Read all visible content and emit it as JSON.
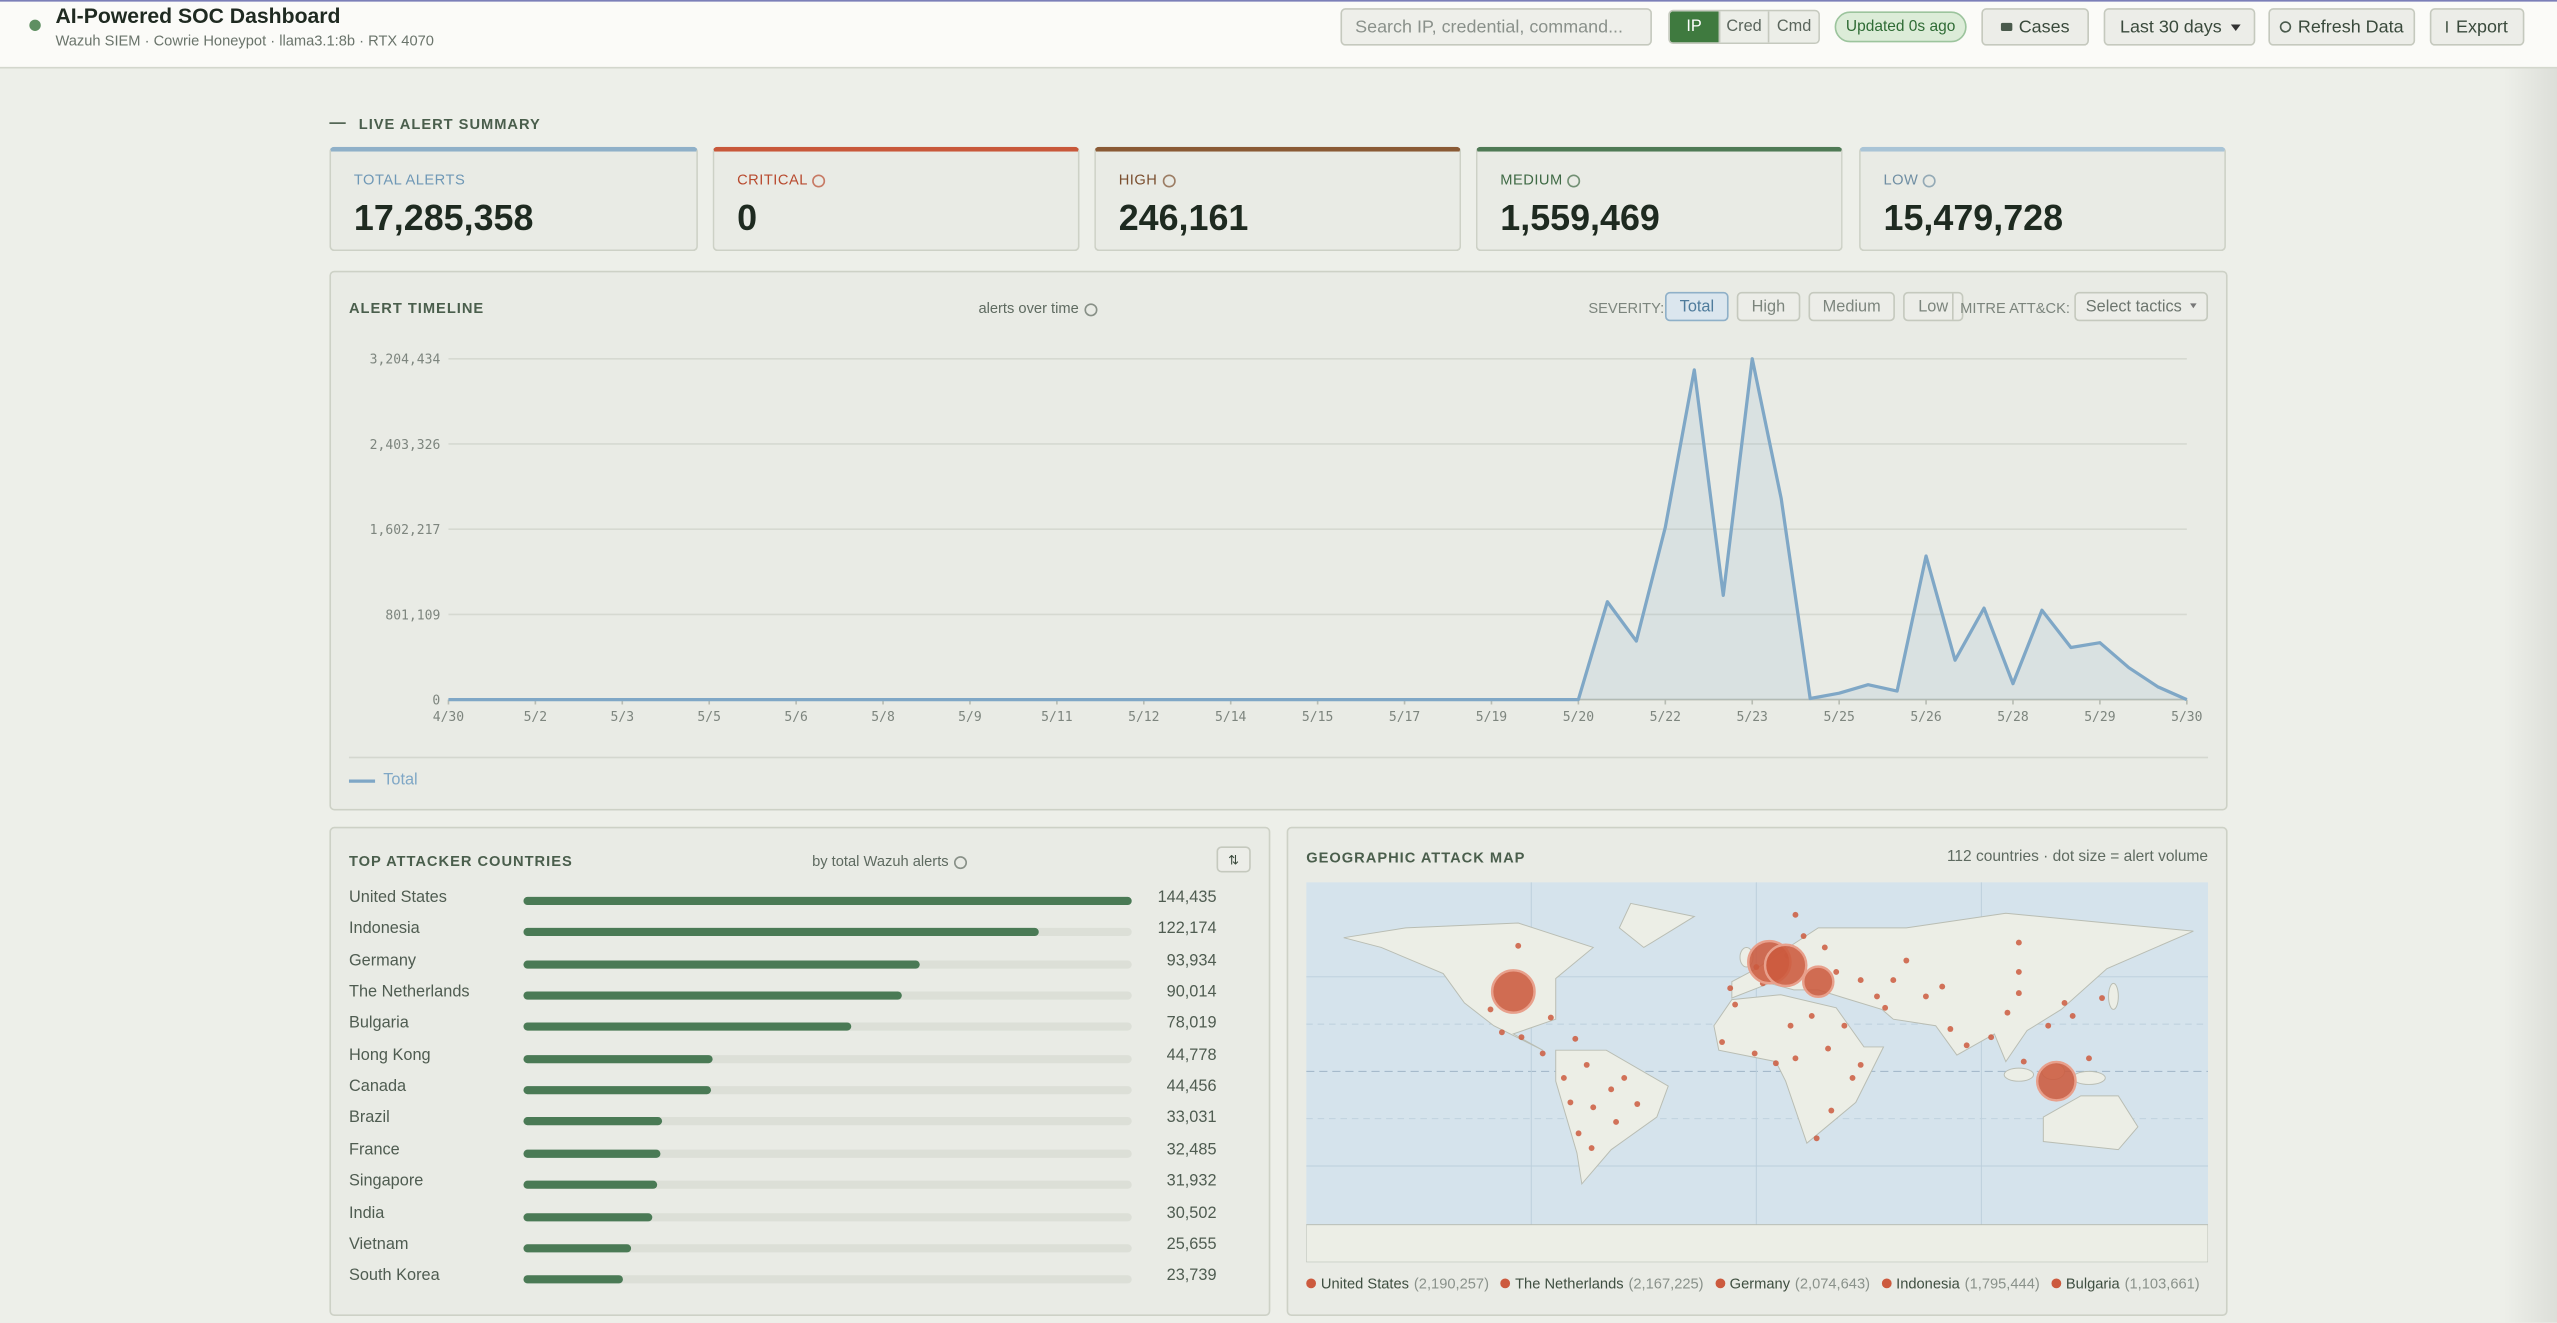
{
  "header": {
    "title": "AI-Powered SOC Dashboard",
    "subtitle": "Wazuh SIEM · Cowrie Honeypot · llama3.1:8b · RTX 4070",
    "search_placeholder": "Search IP, credential, command...",
    "search_modes": [
      "IP",
      "Cred",
      "Cmd"
    ],
    "status": "Updated 0s ago",
    "cases": "Cases",
    "range": "Last 30 days",
    "refresh": "Refresh Data",
    "export": "Export"
  },
  "summary": {
    "title": "LIVE ALERT SUMMARY",
    "cards": [
      {
        "label": "TOTAL ALERTS",
        "value": "17,285,358"
      },
      {
        "label": "CRITICAL",
        "value": "0"
      },
      {
        "label": "HIGH",
        "value": "246,161"
      },
      {
        "label": "MEDIUM",
        "value": "1,559,469"
      },
      {
        "label": "LOW",
        "value": "15,479,728"
      }
    ]
  },
  "timeline": {
    "title": "ALERT TIMELINE",
    "subtitle": "alerts over time",
    "severity_label": "SEVERITY:",
    "severity_options": [
      "Total",
      "High",
      "Medium",
      "Low"
    ],
    "mitre_label": "MITRE ATT&CK:",
    "mitre_placeholder": "Select tactics",
    "chart": {
      "type": "line",
      "categories": [
        "4/30",
        null,
        null,
        "5/2",
        null,
        null,
        "5/3",
        null,
        null,
        "5/5",
        null,
        null,
        "5/6",
        null,
        null,
        "5/8",
        null,
        null,
        "5/9",
        null,
        null,
        "5/11",
        null,
        null,
        "5/12",
        null,
        null,
        "5/14",
        null,
        null,
        "5/15",
        null,
        null,
        "5/17",
        null,
        null,
        "5/19",
        null,
        null,
        "5/20",
        null,
        null,
        "5/22",
        null,
        null,
        "5/23",
        null,
        null,
        "5/25",
        null,
        null,
        "5/26",
        null,
        null,
        "5/28",
        null,
        null,
        "5/29",
        null,
        null,
        "5/30"
      ],
      "series": [
        {
          "name": "Total",
          "color": "#7fa7c6",
          "values": [
            0,
            0,
            0,
            0,
            0,
            0,
            0,
            0,
            0,
            0,
            0,
            0,
            0,
            0,
            0,
            0,
            0,
            0,
            0,
            0,
            0,
            0,
            0,
            0,
            0,
            0,
            0,
            0,
            0,
            0,
            0,
            0,
            0,
            0,
            0,
            0,
            0,
            0,
            0,
            0,
            920000,
            550000,
            1620000,
            3100000,
            980000,
            3204434,
            1890000,
            10000,
            60000,
            140000,
            80000,
            1350000,
            370000,
            860000,
            150000,
            840000,
            490000,
            535000,
            300000,
            120000,
            0
          ]
        }
      ],
      "ylim": [
        0,
        3204434
      ],
      "yticks": [
        0,
        {
          "value": 801109,
          "label": "801,109"
        },
        {
          "value": 1602217,
          "label": "1,602,217"
        },
        {
          "value": 2403326,
          "label": "2,403,326"
        },
        {
          "value": 3204434,
          "label": "3,204,434"
        }
      ],
      "grid": true
    }
  },
  "countries": {
    "title": "TOP ATTACKER COUNTRIES",
    "subtitle": "by total Wazuh alerts",
    "sort": "⇅",
    "chart": {
      "type": "bar",
      "orientation": "horizontal",
      "color": "#4a7a55",
      "categories": [
        "United States",
        "Indonesia",
        "Germany",
        "The Netherlands",
        "Bulgaria",
        "Hong Kong",
        "Canada",
        "Brazil",
        "France",
        "Singapore",
        "India",
        "Vietnam",
        "South Korea"
      ],
      "values": [
        144435,
        122174,
        93934,
        90014,
        78019,
        44778,
        44456,
        33031,
        32485,
        31932,
        30502,
        25655,
        23739
      ],
      "value_labels": [
        "144,435",
        "122,174",
        "93,934",
        "90,014",
        "78,019",
        "44,778",
        "44,456",
        "33,031",
        "32,485",
        "31,932",
        "30,502",
        "25,655",
        "23,739"
      ]
    }
  },
  "map": {
    "title": "GEOGRAPHIC ATTACK MAP",
    "caption": "112 countries · dot size = alert volume",
    "color": "#cc5a3e",
    "legend": [
      {
        "name": "United States",
        "value": 2190257,
        "label": "(2,190,257)"
      },
      {
        "name": "The Netherlands",
        "value": 2167225,
        "label": "(2,167,225)"
      },
      {
        "name": "Germany",
        "value": 2074643,
        "label": "(2,074,643)"
      },
      {
        "name": "Indonesia",
        "value": 1795444,
        "label": "(1,795,444)"
      },
      {
        "name": "Bulgaria",
        "value": 1103661,
        "label": "(1,103,661)"
      }
    ]
  }
}
